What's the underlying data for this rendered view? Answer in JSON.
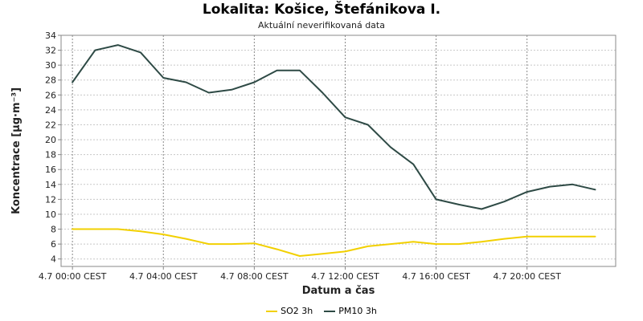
{
  "chart_data": {
    "type": "line",
    "title": "Lokalita: Košice, Štefánikova I.",
    "subtitle": "Aktuální neverifikovaná data",
    "xlabel": "Datum a čas",
    "ylabel": "Koncentrace [µg·m⁻³]",
    "ylim": [
      3,
      34
    ],
    "yticks": [
      4,
      6,
      8,
      10,
      12,
      14,
      16,
      18,
      20,
      22,
      24,
      26,
      28,
      30,
      32,
      34
    ],
    "xlim": [
      -0.5,
      23.9
    ],
    "xticks": [
      {
        "x": 0,
        "label": "4.7 00:00 CEST"
      },
      {
        "x": 4,
        "label": "4.7 04:00 CEST"
      },
      {
        "x": 8,
        "label": "4.7 08:00 CEST"
      },
      {
        "x": 12,
        "label": "4.7 12:00 CEST"
      },
      {
        "x": 16,
        "label": "4.7 16:00 CEST"
      },
      {
        "x": 20,
        "label": "4.7 20:00 CEST"
      }
    ],
    "grid": true,
    "legend_position": "bottom",
    "x": [
      0,
      1,
      2,
      3,
      4,
      5,
      6,
      7,
      8,
      9,
      10,
      11,
      12,
      13,
      14,
      15,
      16,
      17,
      18,
      19,
      20,
      21,
      22,
      23
    ],
    "series": [
      {
        "name": "SO2 3h",
        "color": "#f2d000",
        "values": [
          8.0,
          8.0,
          8.0,
          7.7,
          7.3,
          6.7,
          6.0,
          6.0,
          6.1,
          5.3,
          4.4,
          4.7,
          5.0,
          5.7,
          6.0,
          6.3,
          6.0,
          6.0,
          6.3,
          6.7,
          7.0,
          7.0,
          7.0,
          7.0
        ]
      },
      {
        "name": "PM10 3h",
        "color": "#2e4a45",
        "values": [
          27.7,
          32.0,
          32.7,
          31.7,
          28.3,
          27.7,
          26.3,
          26.7,
          27.7,
          29.3,
          29.3,
          26.3,
          23.0,
          22.0,
          19.0,
          16.7,
          12.0,
          11.3,
          10.7,
          11.7,
          13.0,
          13.7,
          14.0,
          13.3
        ]
      }
    ]
  }
}
